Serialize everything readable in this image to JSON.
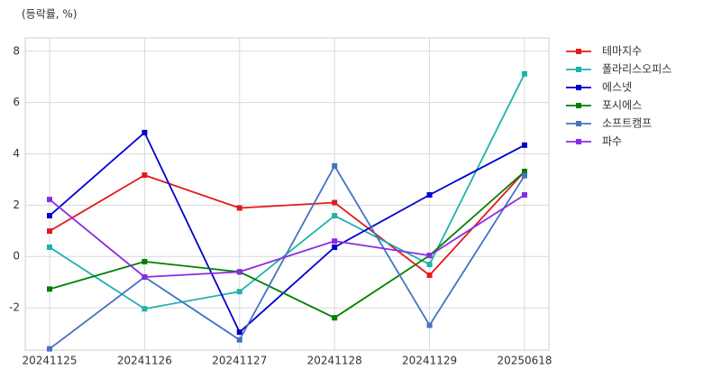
{
  "chart_data": {
    "type": "line",
    "title": "(등락률, %)",
    "categories": [
      "20241125",
      "20241126",
      "20241127",
      "20241128",
      "20241129",
      "20250618"
    ],
    "series": [
      {
        "name": "테마지수",
        "color": "#e31a1c",
        "values": [
          0.99,
          3.17,
          1.89,
          2.1,
          -0.73,
          3.31
        ]
      },
      {
        "name": "폴라리스오피스",
        "color": "#20b2aa",
        "values": [
          0.36,
          -2.04,
          -1.37,
          1.59,
          -0.31,
          7.12
        ]
      },
      {
        "name": "에스넷",
        "color": "#0000cd",
        "values": [
          1.59,
          4.83,
          -2.95,
          0.36,
          2.4,
          4.34
        ]
      },
      {
        "name": "포시에스",
        "color": "#008000",
        "values": [
          -1.27,
          -0.2,
          -0.6,
          -2.39,
          0.04,
          3.31
        ]
      },
      {
        "name": "소프트캠프",
        "color": "#4472c4",
        "values": [
          -3.6,
          -0.8,
          -3.25,
          3.53,
          -2.68,
          3.15
        ]
      },
      {
        "name": "파수",
        "color": "#8a2be2",
        "values": [
          2.22,
          -0.8,
          -0.6,
          0.6,
          0.04,
          2.4
        ]
      }
    ],
    "ylim": [
      -3.65,
      8.52
    ],
    "yticks": [
      -2,
      0,
      2,
      4,
      6,
      8
    ],
    "grid": true,
    "legend": "upper right outside"
  }
}
